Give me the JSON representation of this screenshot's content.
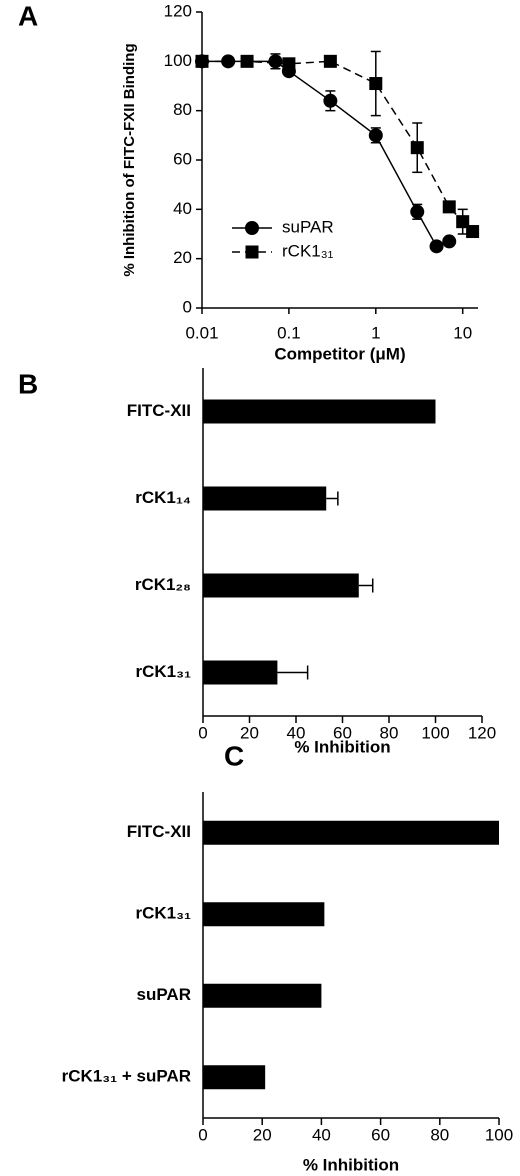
{
  "chart_data": [
    {
      "type": "line",
      "panel": "A",
      "ylabel": "% Inhibition of FITC-FXII Binding",
      "xlabel": "Competitor (μM)",
      "xscale": "log",
      "xlim": [
        0.01,
        15
      ],
      "xticks": [
        0.01,
        0.1,
        1,
        10
      ],
      "ylim": [
        0,
        120
      ],
      "yticks": [
        0,
        20,
        40,
        60,
        80,
        100,
        120
      ],
      "legend": "lower left",
      "series": [
        {
          "name": "suPAR",
          "color": "#000000",
          "marker": "circle",
          "linestyle": "solid",
          "x": [
            0.01,
            0.02,
            0.07,
            0.1,
            0.3,
            1,
            3,
            5,
            7
          ],
          "values": [
            100,
            100,
            100,
            96,
            84,
            70,
            39,
            25,
            27
          ],
          "errors": [
            null,
            null,
            3,
            null,
            4,
            3,
            3,
            null,
            null
          ]
        },
        {
          "name": "rCK1₃₁",
          "color": "#000000",
          "marker": "square",
          "linestyle": "dashed",
          "x": [
            0.01,
            0.033,
            0.1,
            0.3,
            1,
            3,
            7,
            10,
            13
          ],
          "values": [
            100,
            100,
            99,
            100,
            91,
            65,
            41,
            35,
            31
          ],
          "errors": [
            null,
            null,
            null,
            null,
            13,
            10,
            null,
            5,
            null
          ]
        }
      ]
    },
    {
      "type": "hbar",
      "panel": "B",
      "xlabel": "% Inhibition",
      "color": "#000000",
      "categories": [
        "FITC-XII",
        "rCK1₁₄",
        "rCK1₂₈",
        "rCK1₃₁"
      ],
      "values": [
        100,
        53,
        67,
        32
      ],
      "errors": [
        null,
        5,
        6,
        13
      ],
      "xlim": [
        0,
        120
      ],
      "xticks": [
        0,
        20,
        40,
        60,
        80,
        100,
        120
      ]
    },
    {
      "type": "hbar",
      "panel": "C",
      "xlabel": "% Inhibition",
      "color": "#000000",
      "categories": [
        "FITC-XII",
        "rCK1₃₁",
        "suPAR",
        "rCK1₃₁ + suPAR"
      ],
      "values": [
        100,
        41,
        40,
        21
      ],
      "errors": [
        null,
        null,
        null,
        null
      ],
      "xlim": [
        0,
        100
      ],
      "xticks": [
        0,
        20,
        40,
        60,
        80,
        100
      ]
    }
  ]
}
